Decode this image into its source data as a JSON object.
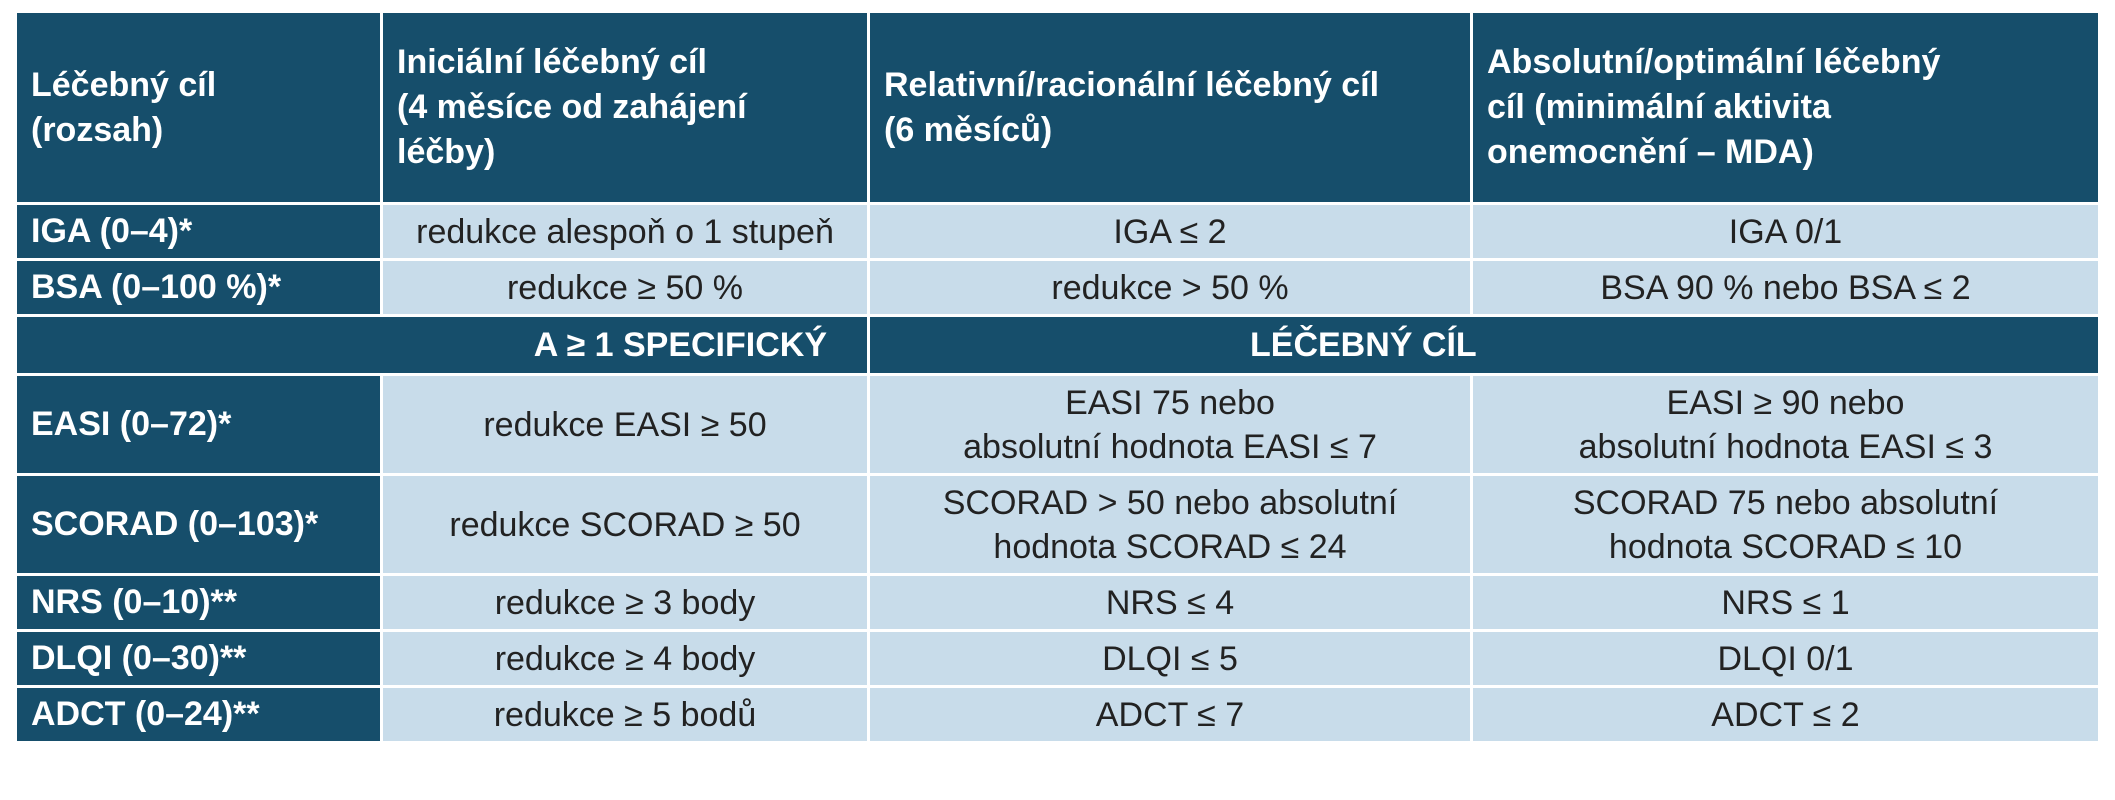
{
  "header": {
    "col1": [
      "Léčebný cíl",
      "(rozsah)"
    ],
    "col2": [
      "Iniciální léčebný cíl",
      "(4 měsíce od zahájení",
      "léčby)"
    ],
    "col3": [
      "Relativní/racionální léčebný cíl",
      "(6 měsíců)"
    ],
    "col4": [
      "Absolutní/optimální léčebný",
      "cíl (minimální aktivita",
      "onemocnění – MDA)"
    ]
  },
  "rows_top": [
    {
      "label": "IGA (0–4)*",
      "initial": [
        "redukce alespoň o 1 stupeň"
      ],
      "relative": [
        "IGA ≤ 2"
      ],
      "absolute": [
        "IGA 0/1"
      ]
    },
    {
      "label": "BSA (0–100 %)*",
      "initial": [
        "redukce ≥ 50 %"
      ],
      "relative": [
        "redukce > 50 %"
      ],
      "absolute": [
        "BSA 90 % nebo BSA ≤ 2"
      ]
    }
  ],
  "separator": {
    "left": "A ≥ 1 SPECIFICKÝ",
    "right": "LÉČEBNÝ CÍL"
  },
  "rows_bottom": [
    {
      "label": "EASI (0–72)*",
      "initial": [
        "redukce EASI ≥ 50"
      ],
      "relative": [
        "EASI 75 nebo",
        "absolutní hodnota EASI ≤ 7"
      ],
      "absolute": [
        "EASI ≥ 90 nebo",
        "absolutní hodnota EASI ≤ 3"
      ]
    },
    {
      "label": "SCORAD (0–103)*",
      "initial": [
        "redukce SCORAD ≥ 50"
      ],
      "relative": [
        "SCORAD > 50 nebo absolutní",
        "hodnota SCORAD ≤ 24"
      ],
      "absolute": [
        "SCORAD 75 nebo absolutní",
        "hodnota SCORAD ≤ 10"
      ]
    },
    {
      "label": "NRS (0–10)**",
      "initial": [
        "redukce ≥ 3 body"
      ],
      "relative": [
        "NRS ≤ 4"
      ],
      "absolute": [
        "NRS ≤ 1"
      ]
    },
    {
      "label": "DLQI (0–30)**",
      "initial": [
        "redukce ≥ 4 body"
      ],
      "relative": [
        "DLQI ≤ 5"
      ],
      "absolute": [
        "DLQI 0/1"
      ]
    },
    {
      "label": "ADCT (0–24)**",
      "initial": [
        "redukce ≥ 5 bodů"
      ],
      "relative": [
        "ADCT ≤ 7"
      ],
      "absolute": [
        "ADCT ≤ 2"
      ]
    }
  ]
}
